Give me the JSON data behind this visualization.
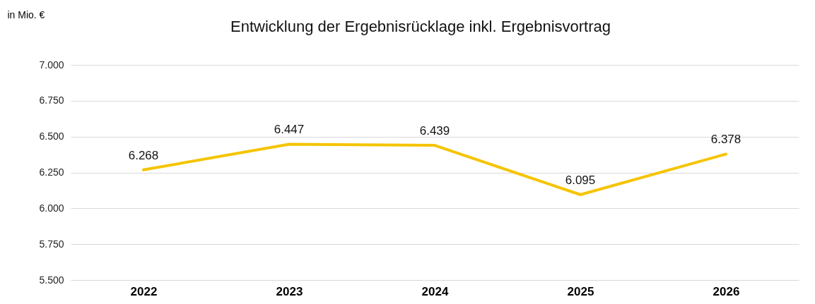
{
  "chart_data": {
    "type": "line",
    "title": "Entwicklung der Ergebnisrücklage inkl. Ergebnisvortrag",
    "ylabel": "in Mio. €",
    "categories": [
      "2022",
      "2023",
      "2024",
      "2025",
      "2026"
    ],
    "series": [
      {
        "color": "#f5c400",
        "values": [
          6268,
          6447,
          6439,
          6095,
          6378
        ],
        "value_labels": [
          "6.268",
          "6.447",
          "6.439",
          "6.095",
          "6.378"
        ]
      }
    ],
    "ylim": [
      5500,
      7000
    ],
    "yticks": [
      {
        "value": 5500,
        "label": "5.500"
      },
      {
        "value": 5750,
        "label": "5.750"
      },
      {
        "value": 6000,
        "label": "6.000"
      },
      {
        "value": 6250,
        "label": "6.250"
      },
      {
        "value": 6500,
        "label": "6.500"
      },
      {
        "value": 6750,
        "label": "6.750"
      },
      {
        "value": 7000,
        "label": "7.000"
      }
    ],
    "grid": "y",
    "line_style": "solid"
  }
}
